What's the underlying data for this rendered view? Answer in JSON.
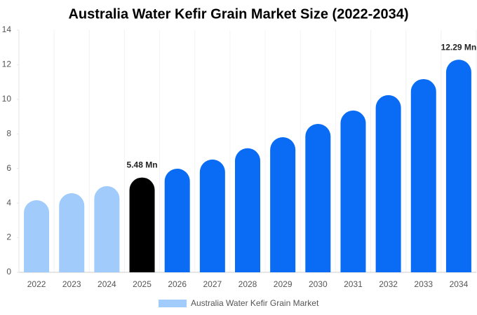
{
  "chart_data": {
    "type": "bar",
    "title": "Australia Water Kefir Grain Market Size (2022-2034)",
    "categories": [
      "2022",
      "2023",
      "2024",
      "2025",
      "2026",
      "2027",
      "2028",
      "2029",
      "2030",
      "2031",
      "2032",
      "2033",
      "2034"
    ],
    "series": [
      {
        "name": "Australia Water Kefir Grain Market",
        "color": "#a0cbfa",
        "values": [
          4.17,
          4.57,
          4.98,
          5.48,
          5.99,
          6.52,
          7.17,
          7.81,
          8.58,
          9.35,
          10.24,
          11.17,
          12.29
        ],
        "value_labels": [
          null,
          null,
          null,
          "5.48 Mn",
          null,
          null,
          null,
          null,
          null,
          null,
          null,
          null,
          "12.29 Mn"
        ],
        "colors": [
          "#a0cbfa",
          "#a0cbfa",
          "#a0cbfa",
          "#000000",
          "#0a6cf5",
          "#0a6cf5",
          "#0a6cf5",
          "#0a6cf5",
          "#0a6cf5",
          "#0a6cf5",
          "#0a6cf5",
          "#0a6cf5",
          "#0a6cf5"
        ]
      }
    ],
    "ylim": [
      0,
      14
    ],
    "yticks": [
      0,
      2,
      4,
      6,
      8,
      10,
      12,
      14
    ],
    "legend": "bottom"
  }
}
